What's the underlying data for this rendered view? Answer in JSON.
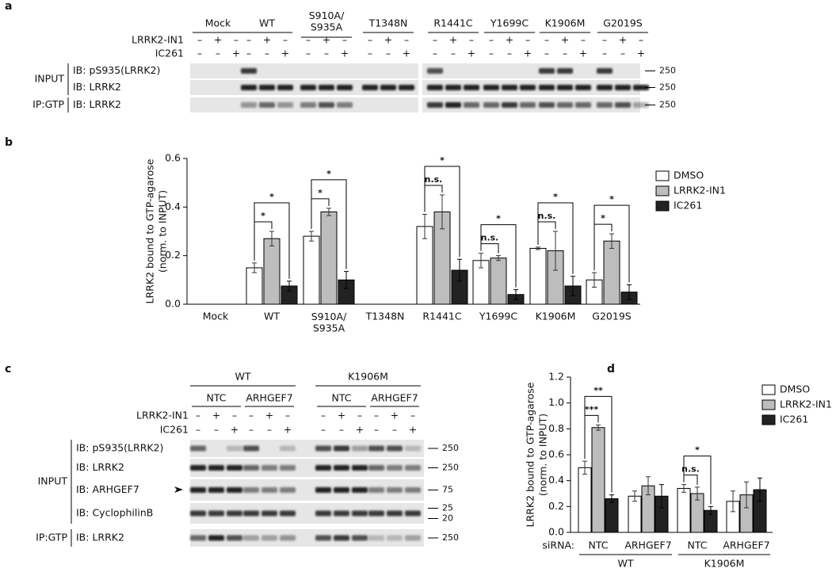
{
  "panel_labels": [
    "a",
    "b",
    "c",
    "d"
  ],
  "blot_a": {
    "groups": [
      "Mock",
      "WT",
      "S910A/S935A",
      "T1348N",
      "R1441C",
      "Y1699C",
      "K1906M",
      "G2019S"
    ],
    "treatments": [
      {
        "label": "LRRK2-IN1",
        "signs": [
          "–",
          "+",
          "–",
          "–",
          "+",
          "–",
          "–",
          "+",
          "–",
          "–",
          "+",
          "–",
          "–",
          "+",
          "–",
          "–",
          "+",
          "–",
          "–",
          "+",
          "–",
          "–",
          "+",
          "–"
        ]
      },
      {
        "label": "IC261",
        "signs": [
          "–",
          "–",
          "+",
          "–",
          "–",
          "+",
          "–",
          "–",
          "+",
          "–",
          "–",
          "+",
          "–",
          "–",
          "+",
          "–",
          "–",
          "+",
          "–",
          "–",
          "+",
          "–",
          "–",
          "+"
        ]
      }
    ],
    "sections": [
      {
        "label": "INPUT",
        "rows": [
          {
            "label": "IB: pS935(LRRK2)",
            "markers": [
              250
            ]
          },
          {
            "label": "IB: LRRK2",
            "markers": [
              250
            ]
          }
        ]
      },
      {
        "label": "IP:GTP",
        "rows": [
          {
            "label": "IB: LRRK2",
            "markers": [
              250
            ]
          }
        ]
      }
    ]
  },
  "blot_c": {
    "groups": [
      {
        "label": "WT",
        "subgroups": [
          "NTC",
          "ARHGEF7"
        ]
      },
      {
        "label": "K1906M",
        "subgroups": [
          "NTC",
          "ARHGEF7"
        ]
      }
    ],
    "treatments": [
      {
        "label": "LRRK2-IN1",
        "signs": [
          "–",
          "+",
          "–",
          "–",
          "+",
          "–",
          "–",
          "+",
          "–",
          "–",
          "+",
          "–"
        ]
      },
      {
        "label": "IC261",
        "signs": [
          "–",
          "–",
          "+",
          "–",
          "–",
          "+",
          "–",
          "–",
          "+",
          "–",
          "–",
          "+"
        ]
      }
    ],
    "sections": [
      {
        "label": "INPUT",
        "rows": [
          {
            "label": "IB: pS935(LRRK2)",
            "markers": [
              250
            ]
          },
          {
            "label": "IB: LRRK2",
            "markers": [
              250
            ]
          },
          {
            "label": "IB: ARHGEF7",
            "markers": [
              75
            ]
          },
          {
            "label": "IB: CyclophilinB",
            "markers": [
              25,
              20
            ]
          }
        ]
      },
      {
        "label": "IP:GTP",
        "rows": [
          {
            "label": "IB: LRRK2",
            "markers": [
              250
            ]
          }
        ]
      }
    ]
  },
  "chart_data": [
    {
      "type": "bar",
      "y_label": [
        "LRRK2 bound to GTP-agarose",
        "(norm. to INPUT)"
      ],
      "categories": [
        "Mock",
        "WT",
        "S910A/S935A",
        "T1348N",
        "R1441C",
        "Y1699C",
        "K1906M",
        "G2019S"
      ],
      "series": [
        {
          "name": "DMSO",
          "color": "#ffffff",
          "values": [
            null,
            0.15,
            0.28,
            null,
            0.32,
            0.18,
            0.23,
            0.1
          ],
          "errors": [
            null,
            0.02,
            0.02,
            null,
            0.05,
            0.03,
            0.005,
            0.03
          ]
        },
        {
          "name": "LRRK2-IN1",
          "color": "#bdbdbd",
          "values": [
            null,
            0.27,
            0.38,
            null,
            0.38,
            0.19,
            0.22,
            0.26
          ],
          "errors": [
            null,
            0.03,
            0.015,
            null,
            0.07,
            0.01,
            0.08,
            0.03
          ],
          "significance": [
            null,
            "*",
            "*",
            null,
            "n.s.",
            "n.s.",
            "n.s.",
            "*"
          ]
        },
        {
          "name": "IC261",
          "color": "#222222",
          "values": [
            null,
            0.075,
            0.1,
            null,
            0.14,
            0.04,
            0.075,
            0.05
          ],
          "errors": [
            null,
            0.02,
            0.035,
            null,
            0.045,
            0.02,
            0.04,
            0.03
          ],
          "significance": [
            null,
            "*",
            "*",
            null,
            "*",
            "*",
            "*",
            "*"
          ]
        }
      ],
      "ylim": [
        0,
        0.6
      ],
      "yticks": [
        {
          "value": 0,
          "label": "0.0"
        },
        0.2,
        0.4,
        0.6
      ],
      "legend": "upper right"
    },
    {
      "type": "bar",
      "y_label": [
        "LRRK2 bound to GTP-agarose",
        "(norm. to INPUT)"
      ],
      "x_label": "siRNA:",
      "groups": [
        {
          "label": "WT",
          "categories": [
            "NTC",
            "ARHGEF7"
          ]
        },
        {
          "label": "K1906M",
          "categories": [
            "NTC",
            "ARHGEF7"
          ]
        }
      ],
      "series": [
        {
          "name": "DMSO",
          "color": "#ffffff",
          "values": [
            0.5,
            0.28,
            0.34,
            0.24
          ],
          "errors": [
            0.05,
            0.04,
            0.03,
            0.08
          ]
        },
        {
          "name": "LRRK2-IN1",
          "color": "#bdbdbd",
          "values": [
            0.81,
            0.36,
            0.3,
            0.29
          ],
          "errors": [
            0.02,
            0.07,
            0.05,
            0.1
          ],
          "significance": [
            "***",
            null,
            "n.s.",
            null
          ]
        },
        {
          "name": "IC261",
          "color": "#222222",
          "values": [
            0.26,
            0.28,
            0.17,
            0.33
          ],
          "errors": [
            0.03,
            0.09,
            0.03,
            0.09
          ],
          "significance": [
            "**",
            null,
            "*",
            null
          ]
        }
      ],
      "ylim": [
        0,
        1.2
      ],
      "yticks": [
        {
          "value": 0,
          "label": "0.0"
        },
        0.2,
        0.4,
        0.6,
        0.8,
        {
          "value": 1,
          "label": "1.0"
        },
        1.2
      ],
      "legend": "upper right"
    }
  ]
}
